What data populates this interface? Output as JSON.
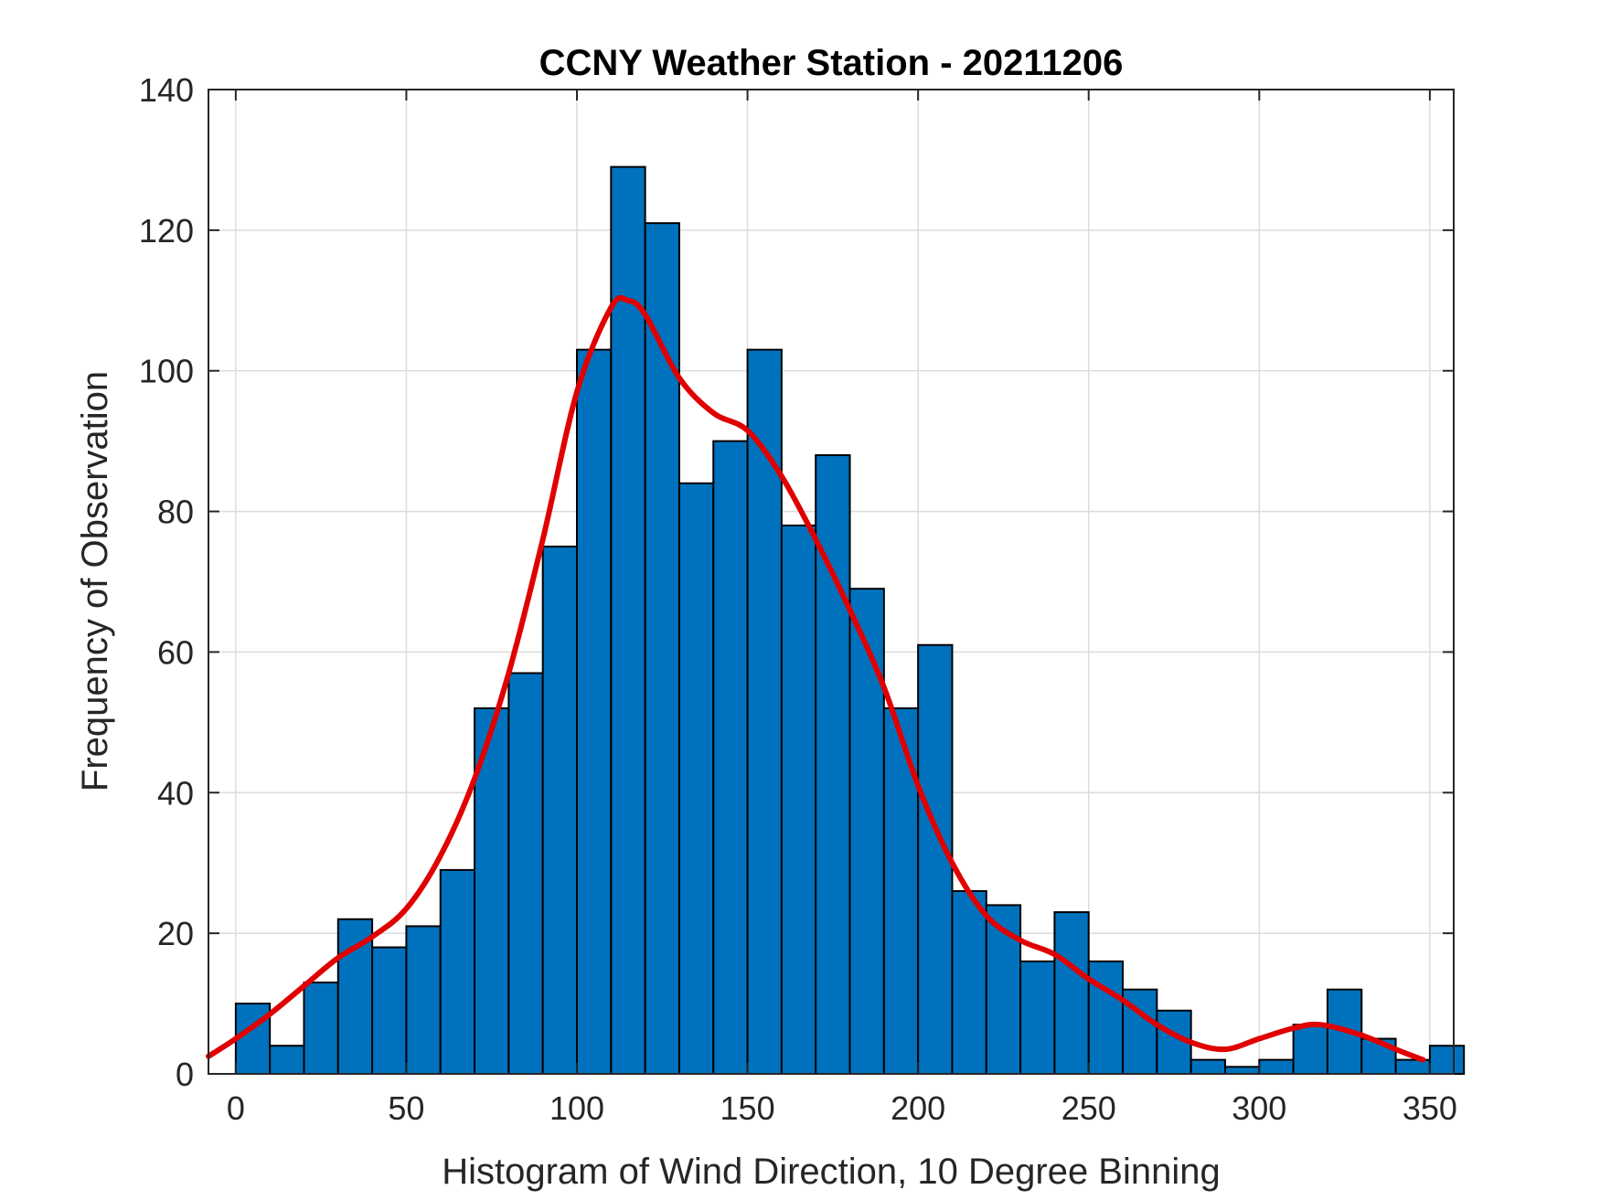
{
  "chart_data": {
    "type": "bar",
    "title": "CCNY Weather Station - 20211206",
    "xlabel": "Histogram of Wind Direction, 10 Degree Binning",
    "ylabel": "Frequency of Observation",
    "xlim": [
      -8,
      357
    ],
    "ylim": [
      0,
      140
    ],
    "xticks": [
      0,
      50,
      100,
      150,
      200,
      250,
      300,
      350
    ],
    "yticks": [
      0,
      20,
      40,
      60,
      80,
      100,
      120,
      140
    ],
    "grid": true,
    "bin_width": 10,
    "bins": [
      {
        "x0": 0,
        "value": 10
      },
      {
        "x0": 10,
        "value": 4
      },
      {
        "x0": 20,
        "value": 13
      },
      {
        "x0": 30,
        "value": 22
      },
      {
        "x0": 40,
        "value": 18
      },
      {
        "x0": 50,
        "value": 21
      },
      {
        "x0": 60,
        "value": 29
      },
      {
        "x0": 70,
        "value": 52
      },
      {
        "x0": 80,
        "value": 57
      },
      {
        "x0": 90,
        "value": 75
      },
      {
        "x0": 100,
        "value": 103
      },
      {
        "x0": 110,
        "value": 129
      },
      {
        "x0": 120,
        "value": 121
      },
      {
        "x0": 130,
        "value": 84
      },
      {
        "x0": 140,
        "value": 90
      },
      {
        "x0": 150,
        "value": 103
      },
      {
        "x0": 160,
        "value": 78
      },
      {
        "x0": 170,
        "value": 88
      },
      {
        "x0": 180,
        "value": 69
      },
      {
        "x0": 190,
        "value": 52
      },
      {
        "x0": 200,
        "value": 61
      },
      {
        "x0": 210,
        "value": 26
      },
      {
        "x0": 220,
        "value": 24
      },
      {
        "x0": 230,
        "value": 16
      },
      {
        "x0": 240,
        "value": 23
      },
      {
        "x0": 250,
        "value": 16
      },
      {
        "x0": 260,
        "value": 12
      },
      {
        "x0": 270,
        "value": 9
      },
      {
        "x0": 280,
        "value": 2
      },
      {
        "x0": 290,
        "value": 1
      },
      {
        "x0": 300,
        "value": 2
      },
      {
        "x0": 310,
        "value": 7
      },
      {
        "x0": 320,
        "value": 12
      },
      {
        "x0": 330,
        "value": 5
      },
      {
        "x0": 340,
        "value": 2
      },
      {
        "x0": 350,
        "value": 4
      }
    ],
    "fit_curve": {
      "points": [
        [
          -8,
          2.5
        ],
        [
          0,
          5
        ],
        [
          10,
          8.5
        ],
        [
          20,
          12.5
        ],
        [
          30,
          16.5
        ],
        [
          40,
          19.5
        ],
        [
          50,
          23.5
        ],
        [
          60,
          31
        ],
        [
          70,
          42
        ],
        [
          80,
          57
        ],
        [
          90,
          76
        ],
        [
          100,
          97
        ],
        [
          110,
          109
        ],
        [
          115,
          110
        ],
        [
          120,
          108
        ],
        [
          130,
          99
        ],
        [
          140,
          94
        ],
        [
          150,
          91.5
        ],
        [
          160,
          85
        ],
        [
          170,
          76
        ],
        [
          180,
          66
        ],
        [
          190,
          55
        ],
        [
          200,
          41
        ],
        [
          210,
          30
        ],
        [
          220,
          22.5
        ],
        [
          230,
          19
        ],
        [
          240,
          17
        ],
        [
          250,
          13.5
        ],
        [
          260,
          10.5
        ],
        [
          270,
          7
        ],
        [
          280,
          4.5
        ],
        [
          290,
          3.5
        ],
        [
          300,
          5
        ],
        [
          310,
          6.5
        ],
        [
          318,
          7
        ],
        [
          330,
          5.5
        ],
        [
          340,
          3.5
        ],
        [
          348,
          2
        ]
      ]
    },
    "colors": {
      "bar_fill": "#0072BD",
      "bar_edge": "#000000",
      "curve": "#E00000",
      "grid": "#DCDCDC",
      "axis": "#262626"
    }
  }
}
